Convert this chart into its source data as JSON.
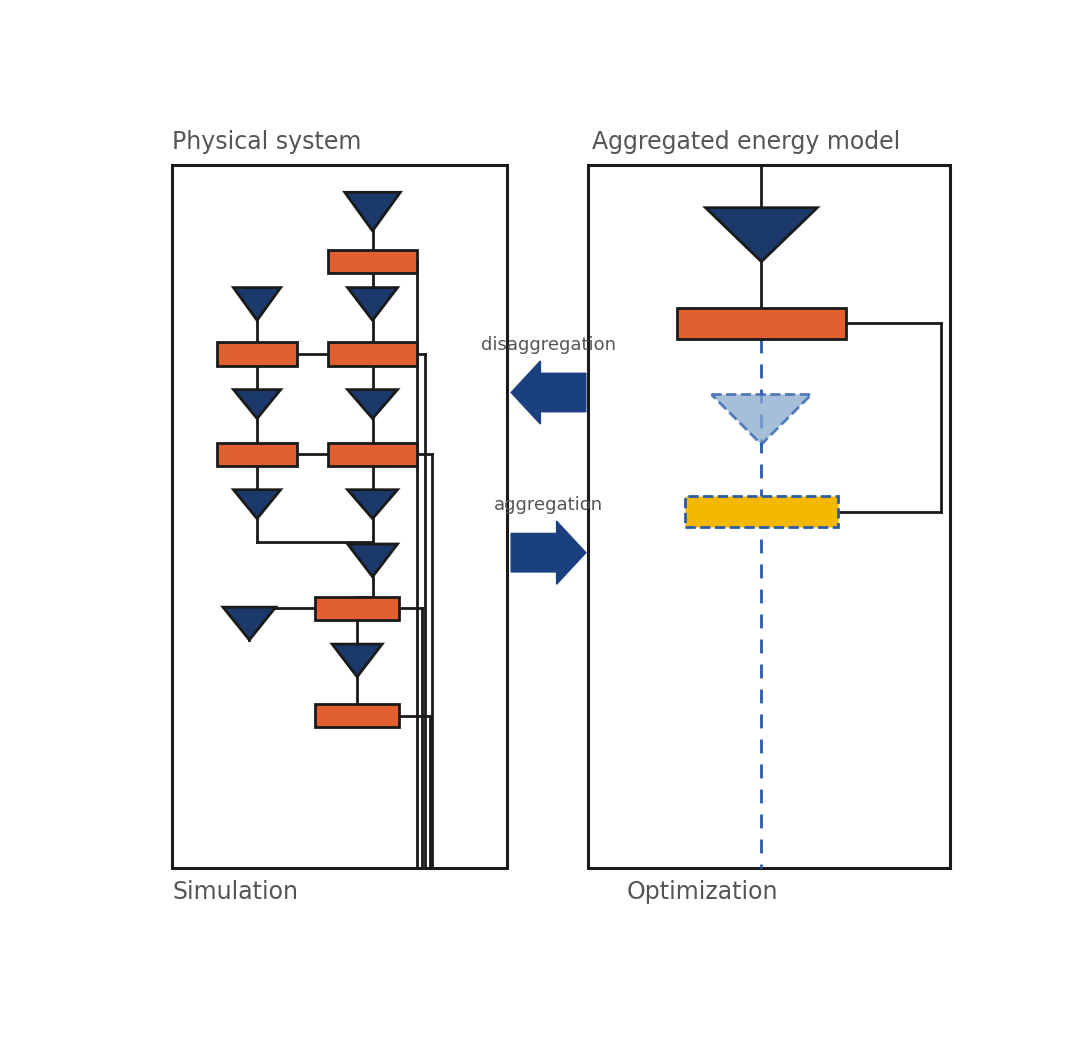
{
  "fig_width": 10.8,
  "fig_height": 10.38,
  "bg_color": "#ffffff",
  "title_physical": "Physical system",
  "title_aggregated": "Aggregated energy model",
  "label_simulation": "Simulation",
  "label_optimization": "Optimization",
  "label_disaggregation": "disaggregation",
  "label_aggregation": "aggregation",
  "orange_color": "#E06030",
  "blue_dark": "#1B3A6B",
  "blue_medium": "#2B5BA8",
  "blue_light": "#6699CC",
  "yellow_color": "#F5B800",
  "line_color": "#1a1a1a",
  "arrow_color": "#1B4080",
  "text_color": "#555555",
  "lw": 2.0
}
